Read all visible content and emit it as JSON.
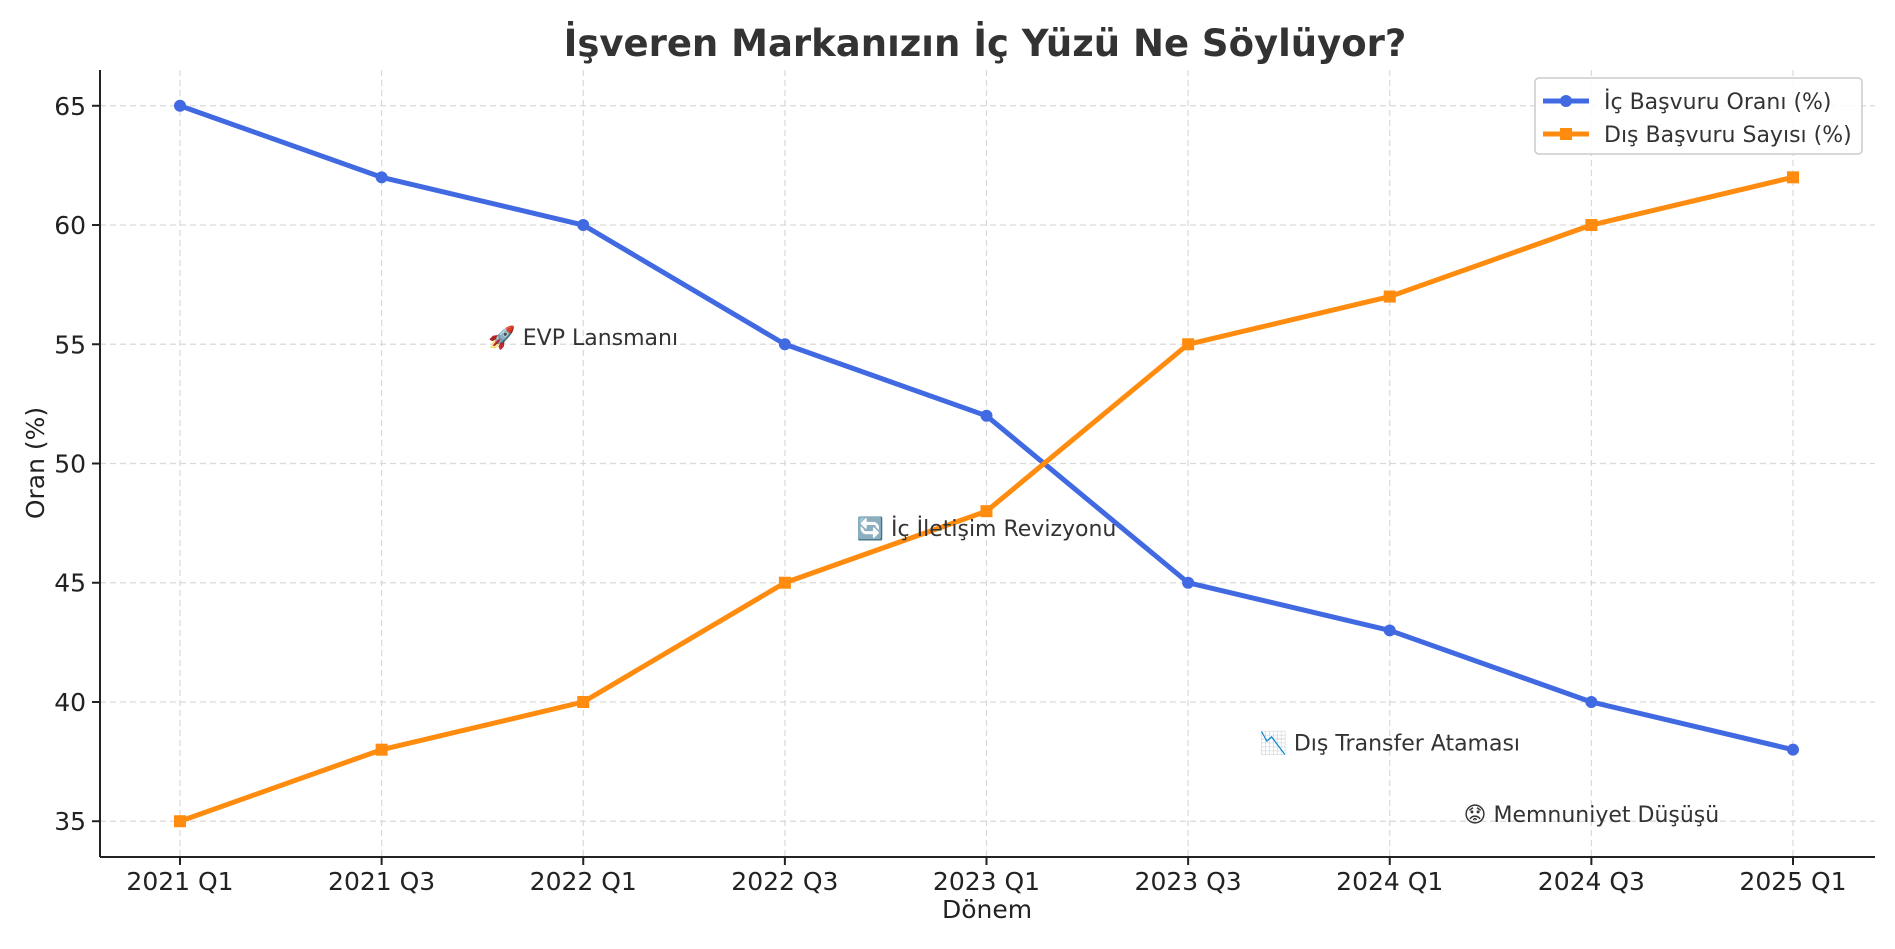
{
  "chart_data": {
    "type": "line",
    "title": "İşveren Markanızın İç Yüzü Ne Söylüyor?",
    "xlabel": "Dönem",
    "ylabel": "Oran (%)",
    "categories": [
      "2021 Q1",
      "2021 Q3",
      "2022 Q1",
      "2022 Q3",
      "2023 Q1",
      "2023 Q3",
      "2024 Q1",
      "2024 Q3",
      "2025 Q1"
    ],
    "ylim": [
      33.5,
      66.5
    ],
    "yticks": [
      35,
      40,
      45,
      50,
      55,
      60,
      65
    ],
    "grid": true,
    "legend_position": "top-right",
    "series": [
      {
        "name": "İç Başvuru Oranı (%)",
        "color": "#4169e1",
        "marker": "circle",
        "values": [
          65,
          62,
          60,
          55,
          52,
          45,
          43,
          40,
          38
        ]
      },
      {
        "name": "Dış Başvuru Sayısı (%)",
        "color": "#ff8c0f",
        "marker": "square",
        "values": [
          35,
          38,
          40,
          45,
          48,
          55,
          57,
          60,
          62
        ]
      }
    ],
    "annotations": [
      {
        "text": "🚀 EVP Lansmanı",
        "x": "2022 Q1",
        "y": 55.3
      },
      {
        "text": "🔄 İç İletişim Revizyonu",
        "x": "2023 Q1",
        "y": 47.3
      },
      {
        "text": "📉 Dış Transfer Ataması",
        "x": "2024 Q1",
        "y": 38.3
      },
      {
        "text": "😟 Memnuniyet Düşüşü",
        "x": "2024 Q3",
        "y": 35.3
      }
    ]
  }
}
